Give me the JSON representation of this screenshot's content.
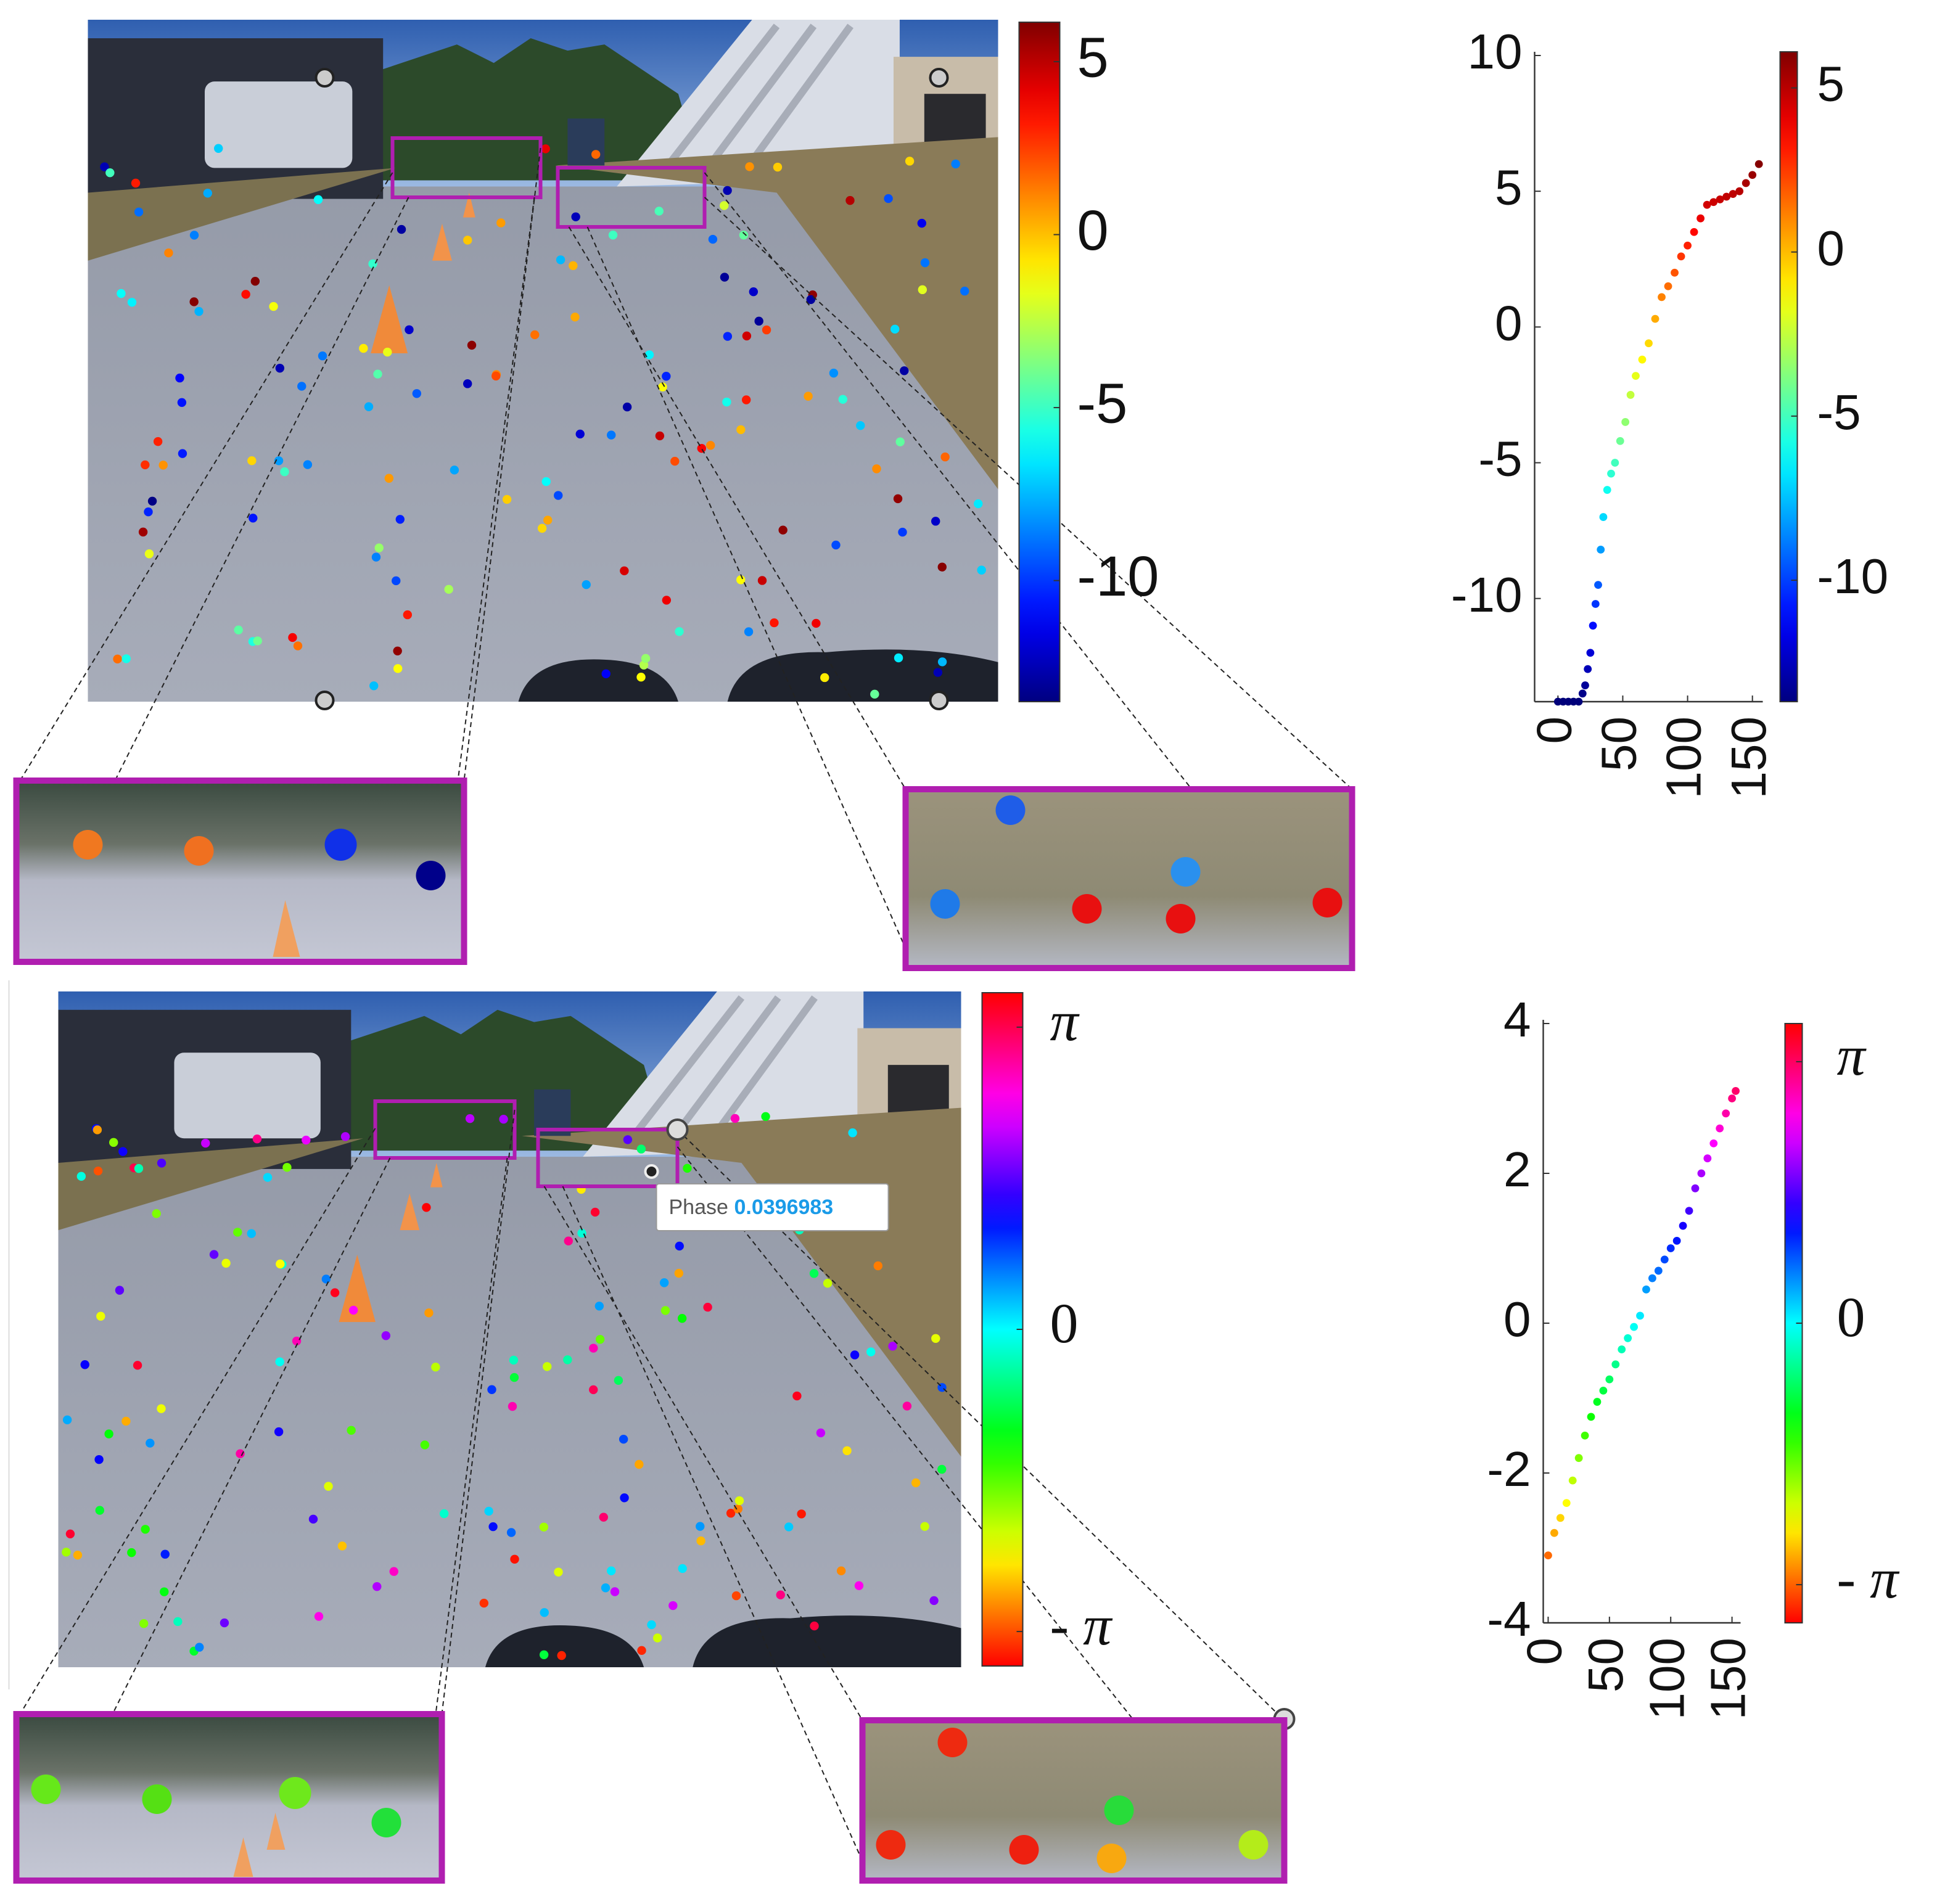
{
  "images": [
    {
      "colorbar": {
        "colormap": "jet",
        "lim": [
          -13.5,
          6.14
        ],
        "ticks": [
          5,
          0,
          -5,
          -10
        ]
      }
    },
    {
      "colorbar": {
        "colormap": "hsv",
        "lim": [
          -3.5,
          3.5
        ],
        "ticks": [
          {
            "value": 3.1416,
            "label": "π"
          },
          0,
          {
            "value": -3.1416,
            "label": "- π"
          }
        ]
      },
      "tooltip": {
        "label": "Phase",
        "value": 0.0396983
      }
    }
  ],
  "chart_data": [
    {
      "type": "scatter",
      "colormap": "jet",
      "x": [
        0,
        4,
        8,
        12,
        16,
        19,
        21,
        23,
        25,
        27,
        29,
        31,
        33,
        35,
        38,
        41,
        44,
        48,
        52,
        56,
        60,
        65,
        70,
        75,
        80,
        85,
        90,
        95,
        100,
        105,
        110,
        115,
        120,
        125,
        130,
        135,
        140,
        145,
        150,
        155
      ],
      "values": [
        -13.8,
        -13.8,
        -13.8,
        -13.8,
        -13.8,
        -13.5,
        -13.2,
        -12.6,
        -12,
        -11,
        -10.2,
        -9.5,
        -8.2,
        -7,
        -6,
        -5.4,
        -5,
        -4.2,
        -3.5,
        -2.5,
        -1.8,
        -1.2,
        -0.6,
        0.3,
        1.1,
        1.5,
        2,
        2.6,
        3,
        3.5,
        4,
        4.5,
        4.6,
        4.7,
        4.8,
        4.9,
        5,
        5.3,
        5.6,
        6
      ],
      "xlim": [
        -18,
        158
      ],
      "ylim": [
        -13.8,
        10
      ],
      "xticks": [
        0,
        50,
        100,
        150
      ],
      "yticks": [
        10,
        5,
        0,
        -5,
        -10
      ],
      "colorbar": {
        "lim": [
          -13.7,
          6.1
        ],
        "ticks": [
          5,
          0,
          -5,
          -10
        ]
      }
    },
    {
      "type": "scatter",
      "colormap": "hsv",
      "x": [
        0,
        5,
        10,
        15,
        20,
        25,
        30,
        35,
        40,
        45,
        50,
        55,
        60,
        65,
        70,
        75,
        80,
        85,
        90,
        95,
        100,
        105,
        110,
        115,
        120,
        125,
        130,
        135,
        140,
        145,
        150,
        153
      ],
      "values": [
        -3.1,
        -2.8,
        -2.6,
        -2.4,
        -2.1,
        -1.8,
        -1.5,
        -1.25,
        -1.05,
        -0.9,
        -0.75,
        -0.55,
        -0.35,
        -0.2,
        -0.05,
        0.1,
        0.45,
        0.6,
        0.7,
        0.85,
        1,
        1.1,
        1.3,
        1.5,
        1.8,
        2,
        2.2,
        2.4,
        2.6,
        2.8,
        3.0,
        3.1
      ],
      "xlim": [
        -4,
        157
      ],
      "ylim": [
        -4,
        4
      ],
      "xticks": [
        0,
        50,
        100,
        150
      ],
      "yticks": [
        4,
        2,
        0,
        -2,
        -4
      ],
      "colorbar": {
        "lim": [
          -3.6,
          3.6
        ],
        "ticks": [
          {
            "value": 3.1416,
            "label": "π"
          },
          0,
          {
            "value": -3.1416,
            "label": "- π"
          }
        ]
      }
    }
  ]
}
